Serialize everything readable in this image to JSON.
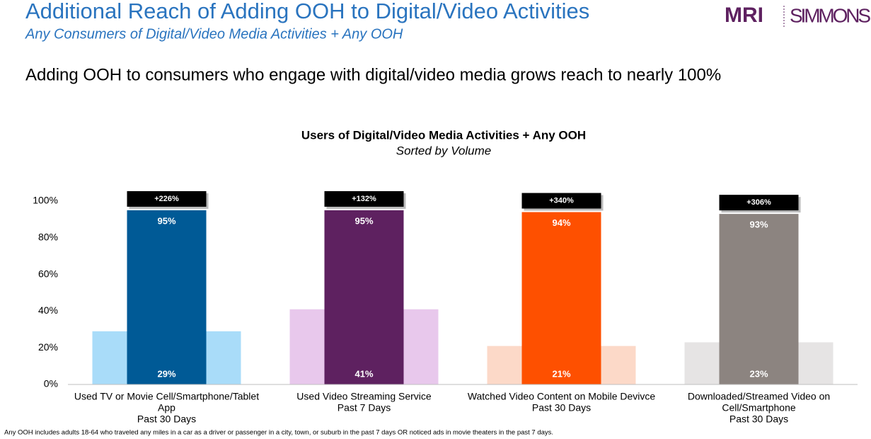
{
  "header": {
    "title": "Additional Reach of Adding OOH to Digital/Video Activities",
    "subtitle": "Any Consumers of Digital/Video Media Activities + Any OOH",
    "headline": "Adding OOH to consumers who engage with digital/video media grows reach to nearly 100%",
    "logo_bold": "MRI",
    "logo_light": "SIMMONS"
  },
  "chart_data": {
    "type": "overlap-bar",
    "title": "Users of Digital/Video Media Activities + Any OOH",
    "subtitle": "Sorted by Volume",
    "categories": [
      [
        "Used TV or Movie Cell/Smartphone/Tablet",
        "App",
        "Past 30 Days"
      ],
      [
        "Used Video Streaming Service",
        "Past 7 Days"
      ],
      [
        "Watched Video Content on Mobile Devivce",
        "Past 30 Days"
      ],
      [
        "Downloaded/Streamed Video on",
        "Cell/Smartphone",
        "Past 30 Days"
      ]
    ],
    "series": [
      {
        "colors": [
          "#a9dcf9",
          "#e8c8ec",
          "#fcd9c8",
          "#e6e4e4"
        ],
        "values": [
          29,
          41,
          21,
          23
        ],
        "value_labels": [
          "29%",
          "41%",
          "21%",
          "23%"
        ]
      },
      {
        "colors": [
          "#005a96",
          "#5e2160",
          "#fe5000",
          "#8c8480"
        ],
        "values": [
          95,
          95,
          94,
          93
        ],
        "value_labels": [
          "95%",
          "95%",
          "94%",
          "93%"
        ]
      }
    ],
    "annotations": [
      "+226%",
      "+132%",
      "+340%",
      "+306%"
    ],
    "ylim": [
      0,
      100
    ],
    "yticks": [
      {
        "value": 0,
        "label": "0%"
      },
      {
        "value": 20,
        "label": "20%"
      },
      {
        "value": 40,
        "label": "40%"
      },
      {
        "value": 60,
        "label": "60%"
      },
      {
        "value": 80,
        "label": "80%"
      },
      {
        "value": 100,
        "label": "100%"
      }
    ]
  },
  "footnote": "Any OOH includes adults 18-64 who traveled any miles in a car as a driver or passenger in a city, town, or suburb in the past 7 days OR noticed ads in movie theaters in the past 7 days."
}
